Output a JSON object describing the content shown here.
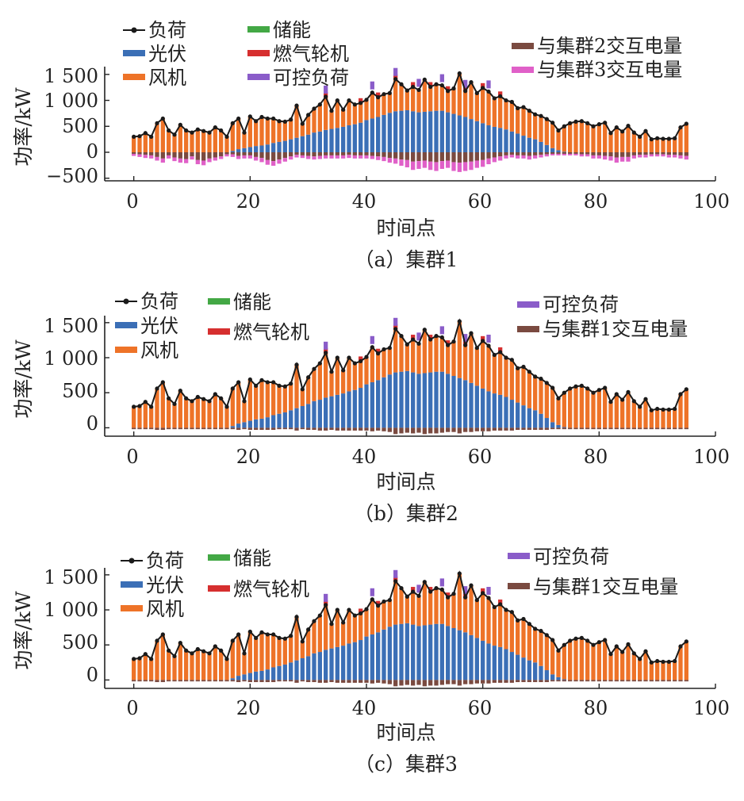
{
  "colors": {
    "load": "#1a1a1a",
    "pv": "#3b6fb6",
    "wind": "#ee7328",
    "storage": "#43a845",
    "gas_turbine": "#d62f2f",
    "controllable_load": "#8a5cc9",
    "exchange_brown": "#7a4a40",
    "exchange_magenta": "#e060c8"
  },
  "chart_data": [
    {
      "type": "bar",
      "caption": "（a）集群1",
      "xlabel": "时间点",
      "ylabel": "功率/kW",
      "xlim": [
        -5,
        100
      ],
      "ylim": [
        -550,
        1650
      ],
      "xticks": [
        0,
        20,
        40,
        60,
        80,
        100
      ],
      "xtick_labels": [
        "0",
        "20",
        "40",
        "60",
        "80",
        "100"
      ],
      "yticks": [
        -500,
        0,
        500,
        1000,
        1500
      ],
      "ytick_labels": [
        "−500",
        "0",
        "500",
        "1 000",
        "1 500"
      ],
      "legend": {
        "load": "负荷",
        "pv": "光伏",
        "wind": "风机",
        "storage": "储能",
        "gas_turbine": "燃气轮机",
        "controllable_load": "可控负荷",
        "exchange_a": "与集群2交互电量",
        "exchange_b": "与集群3交互电量"
      },
      "series": [
        {
          "name": "负荷",
          "values": [
            300,
            310,
            370,
            300,
            560,
            650,
            420,
            340,
            530,
            420,
            380,
            440,
            410,
            380,
            480,
            420,
            300,
            560,
            650,
            380,
            690,
            600,
            680,
            650,
            650,
            600,
            590,
            630,
            900,
            550,
            720,
            840,
            920,
            1070,
            800,
            1000,
            820,
            1000,
            920,
            950,
            1010,
            1150,
            1060,
            1120,
            1140,
            1410,
            1310,
            1190,
            1260,
            1200,
            1400,
            1260,
            1310,
            1290,
            1180,
            1230,
            1520,
            1180,
            1350,
            1140,
            1240,
            1170,
            1040,
            1080,
            1000,
            970,
            850,
            870,
            800,
            730,
            700,
            640,
            570,
            420,
            500,
            560,
            590,
            600,
            560,
            500,
            540,
            570,
            370,
            480,
            400,
            510,
            380,
            300,
            410,
            250,
            270,
            260,
            260,
            270,
            480,
            550
          ]
        },
        {
          "name": "光伏",
          "values": [
            0,
            0,
            0,
            0,
            0,
            0,
            0,
            0,
            0,
            0,
            0,
            0,
            0,
            0,
            0,
            0,
            0,
            25,
            60,
            80,
            100,
            120,
            130,
            150,
            180,
            200,
            220,
            250,
            280,
            310,
            340,
            380,
            400,
            430,
            450,
            470,
            490,
            520,
            540,
            570,
            620,
            650,
            680,
            720,
            760,
            790,
            800,
            810,
            790,
            770,
            780,
            790,
            800,
            800,
            770,
            740,
            710,
            680,
            640,
            600,
            560,
            520,
            490,
            470,
            440,
            400,
            360,
            320,
            280,
            250,
            200,
            140,
            80,
            40,
            10,
            0,
            0,
            0,
            0,
            0,
            0,
            0,
            0,
            0,
            0,
            0,
            0,
            0,
            0,
            0,
            0,
            0,
            0,
            0,
            0,
            0
          ]
        },
        {
          "name": "与集群2交互电量",
          "values": [
            -30,
            -40,
            -50,
            -60,
            -90,
            -120,
            -60,
            -100,
            -120,
            -130,
            -80,
            -150,
            -160,
            -120,
            -100,
            -80,
            -40,
            -40,
            -70,
            -60,
            -60,
            -90,
            -110,
            -150,
            -170,
            -140,
            -110,
            -80,
            -50,
            -60,
            -70,
            -80,
            -70,
            -60,
            -60,
            -60,
            -60,
            -50,
            -60,
            -60,
            -60,
            -70,
            -80,
            -90,
            -110,
            -120,
            -140,
            -150,
            -180,
            -170,
            -160,
            -180,
            -190,
            -170,
            -160,
            -190,
            -200,
            -190,
            -180,
            -160,
            -150,
            -120,
            -100,
            -80,
            -60,
            -50,
            -60,
            -60,
            -70,
            -60,
            -50,
            -40,
            -30,
            -30,
            -30,
            -30,
            -30,
            -40,
            -40,
            -60,
            -60,
            -70,
            -80,
            -100,
            -90,
            -90,
            -60,
            -50,
            -50,
            -40,
            -40,
            -40,
            -50,
            -50,
            -60,
            -70
          ]
        },
        {
          "name": "与集群3交互电量",
          "values": [
            -40,
            -50,
            -60,
            -60,
            -70,
            -80,
            -60,
            -70,
            -80,
            -80,
            -60,
            -80,
            -90,
            -70,
            -60,
            -50,
            -40,
            -50,
            -60,
            -60,
            -60,
            -70,
            -80,
            -90,
            -90,
            -80,
            -70,
            -60,
            -50,
            -50,
            -60,
            -60,
            -60,
            -60,
            -60,
            -60,
            -60,
            -60,
            -60,
            -60,
            -60,
            -60,
            -70,
            -80,
            -90,
            -100,
            -120,
            -140,
            -160,
            -150,
            -140,
            -160,
            -170,
            -150,
            -140,
            -170,
            -180,
            -170,
            -160,
            -140,
            -130,
            -110,
            -90,
            -80,
            -60,
            -50,
            -60,
            -60,
            -70,
            -60,
            -50,
            -40,
            -30,
            -30,
            -30,
            -30,
            -30,
            -40,
            -40,
            -60,
            -60,
            -70,
            -80,
            -100,
            -90,
            -90,
            -60,
            -50,
            -50,
            -40,
            -40,
            -40,
            -50,
            -50,
            -60,
            -70
          ]
        }
      ]
    },
    {
      "type": "bar",
      "caption": "（b）集群2",
      "xlabel": "时间点",
      "ylabel": "功率/kW",
      "xlim": [
        -5,
        100
      ],
      "ylim": [
        -120,
        1600
      ],
      "xticks": [
        0,
        20,
        40,
        60,
        80,
        100
      ],
      "xtick_labels": [
        "0",
        "20",
        "40",
        "60",
        "80",
        "100"
      ],
      "yticks": [
        0,
        500,
        1000,
        1500
      ],
      "ytick_labels": [
        "0",
        "500",
        "1 000",
        "1 500"
      ],
      "legend": {
        "load": "负荷",
        "pv": "光伏",
        "wind": "风机",
        "storage": "储能",
        "gas_turbine": "燃气轮机",
        "controllable_load": "可控负荷",
        "exchange_a": "与集群1交互电量"
      },
      "series": [
        {
          "name": "负荷",
          "values": [
            300,
            310,
            370,
            300,
            560,
            650,
            420,
            340,
            530,
            420,
            380,
            440,
            410,
            380,
            480,
            420,
            300,
            560,
            650,
            380,
            690,
            600,
            680,
            650,
            650,
            600,
            590,
            630,
            900,
            550,
            720,
            840,
            920,
            1070,
            800,
            1000,
            820,
            1000,
            920,
            950,
            1010,
            1150,
            1060,
            1120,
            1140,
            1410,
            1310,
            1190,
            1260,
            1200,
            1400,
            1260,
            1310,
            1290,
            1180,
            1230,
            1520,
            1180,
            1350,
            1140,
            1240,
            1170,
            1040,
            1080,
            1000,
            970,
            850,
            870,
            800,
            730,
            700,
            640,
            570,
            420,
            500,
            560,
            590,
            600,
            560,
            500,
            540,
            570,
            370,
            480,
            400,
            510,
            380,
            300,
            410,
            250,
            270,
            260,
            260,
            270,
            480,
            550
          ]
        },
        {
          "name": "光伏",
          "values": [
            0,
            0,
            0,
            0,
            0,
            0,
            0,
            0,
            0,
            0,
            0,
            0,
            0,
            0,
            0,
            0,
            0,
            25,
            60,
            80,
            100,
            120,
            130,
            150,
            180,
            200,
            220,
            250,
            280,
            310,
            340,
            380,
            400,
            430,
            450,
            470,
            490,
            520,
            540,
            570,
            620,
            650,
            680,
            720,
            760,
            790,
            800,
            810,
            790,
            770,
            780,
            790,
            800,
            800,
            770,
            740,
            710,
            680,
            640,
            600,
            560,
            520,
            490,
            470,
            440,
            400,
            360,
            320,
            280,
            250,
            200,
            140,
            80,
            40,
            10,
            0,
            0,
            0,
            0,
            0,
            0,
            0,
            0,
            0,
            0,
            0,
            0,
            0,
            0,
            0,
            0,
            0,
            0,
            0,
            0,
            0
          ]
        },
        {
          "name": "与集群1交互电量",
          "values": [
            -20,
            -20,
            -20,
            -20,
            -30,
            -30,
            -20,
            -20,
            -20,
            -20,
            -20,
            -20,
            -20,
            -20,
            -20,
            -20,
            -20,
            -20,
            -30,
            -20,
            -30,
            -30,
            -30,
            -30,
            -30,
            -20,
            -20,
            -20,
            -40,
            -20,
            -30,
            -30,
            -40,
            -40,
            -30,
            -40,
            -40,
            -40,
            -40,
            -40,
            -40,
            -50,
            -40,
            -50,
            -60,
            -90,
            -80,
            -70,
            -80,
            -70,
            -90,
            -80,
            -80,
            -70,
            -60,
            -60,
            -80,
            -60,
            -60,
            -50,
            -50,
            -50,
            -40,
            -40,
            -40,
            -40,
            -30,
            -30,
            -30,
            -30,
            -30,
            -30,
            -20,
            -20,
            -20,
            -20,
            -20,
            -20,
            -20,
            -20,
            -20,
            -20,
            -20,
            -20,
            -20,
            -20,
            -20,
            -20,
            -20,
            -20,
            -20,
            -20,
            -20,
            -20,
            -20,
            -20
          ]
        }
      ]
    },
    {
      "type": "bar",
      "caption": "（c）集群3",
      "xlabel": "时间点",
      "ylabel": "功率/kW",
      "xlim": [
        -5,
        100
      ],
      "ylim": [
        -120,
        1600
      ],
      "xticks": [
        0,
        20,
        40,
        60,
        80,
        100
      ],
      "xtick_labels": [
        "0",
        "20",
        "40",
        "60",
        "80",
        "100"
      ],
      "yticks": [
        0,
        500,
        1000,
        1500
      ],
      "ytick_labels": [
        "0",
        "500",
        "1 000",
        "1 500"
      ],
      "legend": {
        "load": "负荷",
        "pv": "光伏",
        "wind": "风机",
        "storage": "储能",
        "gas_turbine": "燃气轮机",
        "controllable_load": "可控负荷",
        "exchange_a": "与集群1交互电量"
      },
      "series": [
        {
          "name": "负荷",
          "values": [
            300,
            310,
            370,
            300,
            560,
            650,
            420,
            340,
            530,
            420,
            380,
            440,
            410,
            380,
            480,
            420,
            300,
            560,
            650,
            380,
            690,
            600,
            680,
            650,
            650,
            600,
            590,
            630,
            900,
            550,
            720,
            840,
            920,
            1070,
            800,
            1000,
            820,
            1000,
            920,
            950,
            1010,
            1150,
            1060,
            1120,
            1140,
            1410,
            1310,
            1190,
            1260,
            1200,
            1400,
            1260,
            1310,
            1290,
            1180,
            1230,
            1520,
            1180,
            1350,
            1140,
            1240,
            1170,
            1040,
            1080,
            1000,
            970,
            850,
            870,
            800,
            730,
            700,
            640,
            570,
            420,
            500,
            560,
            590,
            600,
            560,
            500,
            540,
            570,
            370,
            480,
            400,
            510,
            380,
            300,
            410,
            250,
            270,
            260,
            260,
            270,
            480,
            550
          ]
        },
        {
          "name": "光伏",
          "values": [
            0,
            0,
            0,
            0,
            0,
            0,
            0,
            0,
            0,
            0,
            0,
            0,
            0,
            0,
            0,
            0,
            0,
            25,
            60,
            80,
            100,
            120,
            130,
            150,
            180,
            200,
            220,
            250,
            280,
            310,
            340,
            380,
            400,
            430,
            450,
            470,
            490,
            520,
            540,
            570,
            620,
            650,
            680,
            720,
            760,
            790,
            800,
            810,
            790,
            770,
            780,
            790,
            800,
            800,
            770,
            740,
            710,
            680,
            640,
            600,
            560,
            520,
            490,
            470,
            440,
            400,
            360,
            320,
            280,
            250,
            200,
            140,
            80,
            40,
            10,
            0,
            0,
            0,
            0,
            0,
            0,
            0,
            0,
            0,
            0,
            0,
            0,
            0,
            0,
            0,
            0,
            0,
            0,
            0,
            0,
            0
          ]
        },
        {
          "name": "与集群1交互电量",
          "values": [
            -20,
            -20,
            -20,
            -20,
            -30,
            -30,
            -20,
            -20,
            -20,
            -20,
            -20,
            -20,
            -20,
            -20,
            -20,
            -20,
            -20,
            -20,
            -30,
            -20,
            -30,
            -30,
            -30,
            -30,
            -30,
            -20,
            -20,
            -20,
            -40,
            -20,
            -30,
            -30,
            -40,
            -40,
            -30,
            -40,
            -40,
            -40,
            -40,
            -40,
            -40,
            -50,
            -40,
            -50,
            -60,
            -90,
            -80,
            -70,
            -80,
            -70,
            -90,
            -80,
            -80,
            -70,
            -60,
            -60,
            -80,
            -60,
            -60,
            -50,
            -50,
            -50,
            -40,
            -40,
            -40,
            -40,
            -30,
            -30,
            -30,
            -30,
            -30,
            -30,
            -20,
            -20,
            -20,
            -20,
            -20,
            -20,
            -20,
            -20,
            -20,
            -20,
            -20,
            -20,
            -20,
            -20,
            -20,
            -20,
            -20,
            -20,
            -20,
            -20,
            -20,
            -20,
            -20,
            -20
          ]
        }
      ]
    }
  ]
}
